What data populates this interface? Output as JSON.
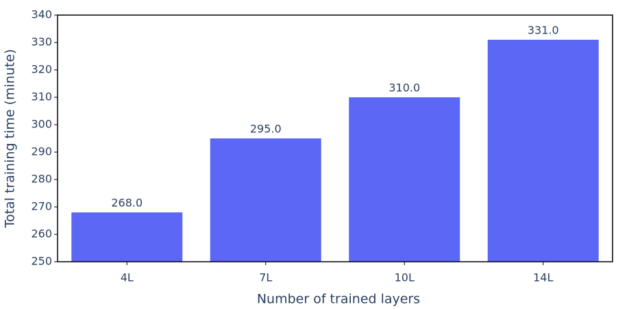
{
  "chart_data": {
    "type": "bar",
    "xlabel": "Number of trained layers",
    "ylabel": "Total training time (minute)",
    "categories": [
      "4L",
      "7L",
      "10L",
      "14L"
    ],
    "values": [
      268,
      295,
      310,
      331
    ],
    "value_labels": [
      "268.0",
      "295.0",
      "310.0",
      "331.0"
    ],
    "color": "#5c67f5",
    "ylim": [
      250,
      340
    ],
    "yticks": [
      250,
      260,
      270,
      280,
      290,
      300,
      310,
      320,
      330,
      340
    ]
  }
}
